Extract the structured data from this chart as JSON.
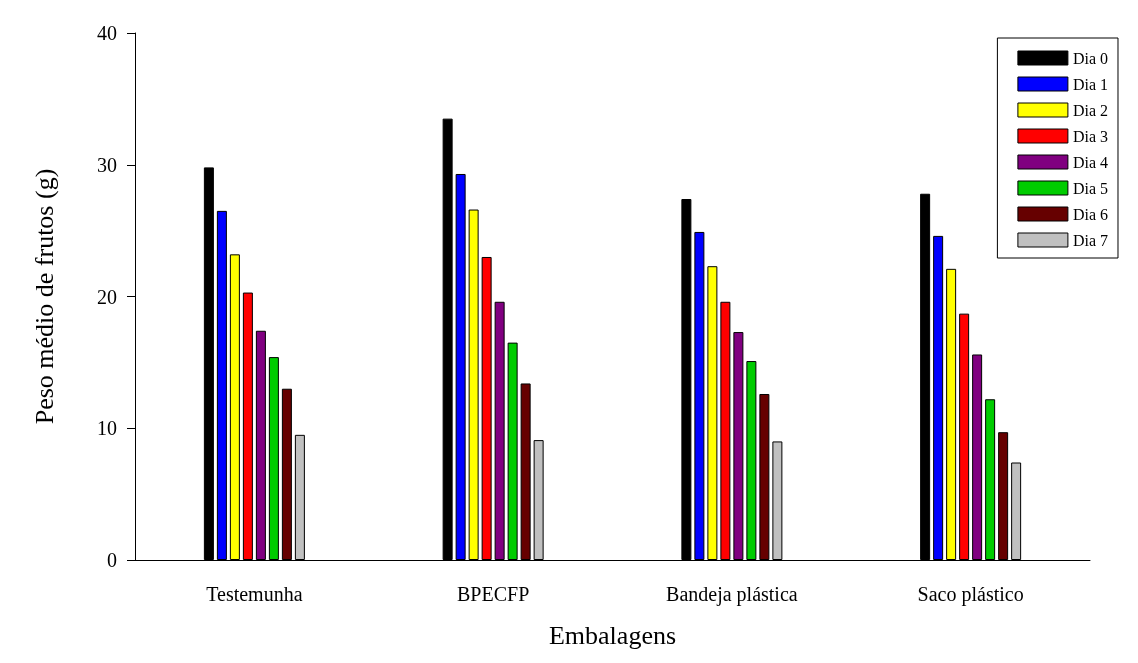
{
  "chart_data": {
    "type": "bar",
    "xlabel": "Embalagens",
    "ylabel": "Peso médio de frutos (g)",
    "categories": [
      "Testemunha",
      "BPECFP",
      "Bandeja plástica",
      "Saco plástico"
    ],
    "ylim": [
      0,
      40
    ],
    "yticks": [
      0,
      10,
      20,
      30,
      40
    ],
    "grid": false,
    "legend": "top right",
    "series": [
      {
        "name": "Dia 0",
        "color": "#000000",
        "values": [
          29.8,
          33.5,
          27.4,
          27.8
        ]
      },
      {
        "name": "Dia 1",
        "color": "#0000ff",
        "values": [
          26.5,
          29.3,
          24.9,
          24.6
        ]
      },
      {
        "name": "Dia 2",
        "color": "#ffff00",
        "values": [
          23.2,
          26.6,
          22.3,
          22.1
        ]
      },
      {
        "name": "Dia 3",
        "color": "#ff0000",
        "values": [
          20.3,
          23.0,
          19.6,
          18.7
        ]
      },
      {
        "name": "Dia 4",
        "color": "#800080",
        "values": [
          17.4,
          19.6,
          17.3,
          15.6
        ]
      },
      {
        "name": "Dia 5",
        "color": "#00cc00",
        "values": [
          15.4,
          16.5,
          15.1,
          12.2
        ]
      },
      {
        "name": "Dia 6",
        "color": "#660000",
        "values": [
          13.0,
          13.4,
          12.6,
          9.7
        ]
      },
      {
        "name": "Dia 7",
        "color": "#c0c0c0",
        "values": [
          9.5,
          9.1,
          9.0,
          7.4
        ]
      }
    ]
  }
}
